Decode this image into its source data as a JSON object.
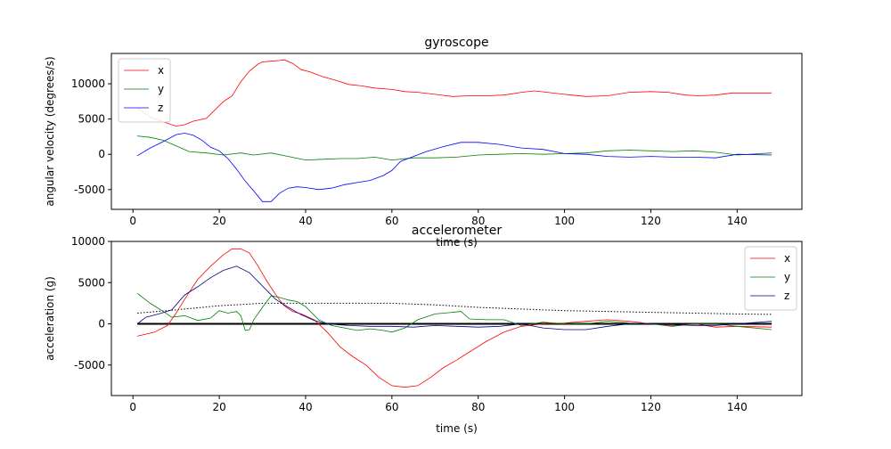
{
  "chart_data": [
    {
      "type": "line",
      "title": "gyroscope",
      "xlabel": "time (s)",
      "ylabel": "angular velocity (degrees/s)",
      "xlim": [
        -5,
        155
      ],
      "ylim": [
        -7800,
        14300
      ],
      "xticks": [
        0,
        20,
        40,
        60,
        80,
        100,
        120,
        140
      ],
      "yticks": [
        -5000,
        0,
        5000,
        10000
      ],
      "legend": "top-left",
      "grid": false,
      "series": [
        {
          "name": "x",
          "color": "#ff0000",
          "x": [
            1,
            4,
            7,
            10,
            12,
            14,
            17,
            19,
            21,
            23,
            25,
            27,
            29,
            30,
            32,
            34,
            35,
            37,
            39,
            41,
            44,
            47,
            50,
            53,
            56,
            60,
            63,
            66,
            70,
            74,
            78,
            82,
            86,
            90,
            93,
            96,
            100,
            105,
            110,
            115,
            120,
            124,
            128,
            131,
            135,
            139,
            143,
            148
          ],
          "y": [
            6600,
            5300,
            4600,
            4000,
            4200,
            4700,
            5100,
            6300,
            7500,
            8300,
            10300,
            11800,
            12800,
            13100,
            13200,
            13300,
            13400,
            12900,
            12000,
            11700,
            11000,
            10500,
            9900,
            9700,
            9400,
            9200,
            8900,
            8800,
            8500,
            8200,
            8300,
            8300,
            8400,
            8800,
            9000,
            8800,
            8500,
            8200,
            8300,
            8800,
            8900,
            8800,
            8400,
            8300,
            8400,
            8700,
            8700,
            8700
          ]
        },
        {
          "name": "y",
          "color": "#008000",
          "x": [
            1,
            4,
            7,
            10,
            13,
            17,
            21,
            25,
            28,
            32,
            36,
            40,
            44,
            48,
            52,
            56,
            60,
            65,
            70,
            75,
            80,
            85,
            90,
            95,
            100,
            105,
            110,
            115,
            120,
            125,
            130,
            135,
            140,
            148
          ],
          "y": [
            2600,
            2400,
            2000,
            1200,
            400,
            200,
            -100,
            200,
            -100,
            200,
            -300,
            -800,
            -700,
            -600,
            -600,
            -400,
            -800,
            -500,
            -500,
            -400,
            -100,
            0,
            100,
            0,
            100,
            200,
            500,
            600,
            500,
            400,
            500,
            300,
            -100,
            200
          ]
        },
        {
          "name": "z",
          "color": "#0000ff",
          "x": [
            1,
            4,
            7,
            10,
            12,
            14,
            16,
            18,
            20,
            22,
            24,
            26,
            28,
            30,
            32,
            34,
            36,
            38,
            40,
            43,
            46,
            49,
            52,
            55,
            58,
            60,
            62,
            65,
            68,
            72,
            76,
            80,
            85,
            90,
            95,
            100,
            105,
            110,
            115,
            120,
            125,
            130,
            135,
            140,
            148
          ],
          "y": [
            -200,
            900,
            1800,
            2800,
            3000,
            2700,
            2000,
            1000,
            500,
            -600,
            -2100,
            -3800,
            -5200,
            -6700,
            -6700,
            -5500,
            -4800,
            -4600,
            -4700,
            -5000,
            -4800,
            -4300,
            -4000,
            -3700,
            -3000,
            -2300,
            -1000,
            -300,
            400,
            1100,
            1700,
            1700,
            1400,
            900,
            700,
            100,
            0,
            -300,
            -400,
            -300,
            -400,
            -400,
            -500,
            0,
            -100
          ]
        }
      ]
    },
    {
      "type": "line",
      "title": "accelerometer",
      "xlabel": "time (s)",
      "ylabel": "acceleration (g)",
      "xlim": [
        -5,
        155
      ],
      "ylim": [
        -8700,
        10000
      ],
      "xticks": [
        0,
        20,
        40,
        60,
        80,
        100,
        120,
        140
      ],
      "yticks": [
        -5000,
        0,
        5000,
        10000
      ],
      "legend": "top-right",
      "grid": false,
      "series": [
        {
          "name": "x",
          "color": "#ff0000",
          "x": [
            1,
            5,
            8,
            10,
            12,
            15,
            18,
            21,
            23,
            25,
            27,
            29,
            31,
            33,
            35,
            37,
            39,
            42,
            45,
            48,
            51,
            54,
            57,
            60,
            63,
            66,
            69,
            72,
            75,
            78,
            82,
            86,
            90,
            95,
            100,
            105,
            110,
            115,
            120,
            125,
            130,
            135,
            140,
            148
          ],
          "y": [
            -1500,
            -1000,
            -200,
            1300,
            3000,
            5400,
            7000,
            8400,
            9100,
            9100,
            8600,
            7000,
            5200,
            3600,
            2200,
            1500,
            1200,
            500,
            -1000,
            -2800,
            -4000,
            -5000,
            -6500,
            -7500,
            -7700,
            -7500,
            -6500,
            -5300,
            -4400,
            -3400,
            -2100,
            -1000,
            -300,
            0,
            100,
            300,
            500,
            300,
            0,
            -200,
            0,
            -400,
            -300,
            -400
          ]
        },
        {
          "name": "y",
          "color": "#008000",
          "x": [
            1,
            4,
            7,
            9,
            12,
            15,
            18,
            20,
            22,
            24,
            25,
            26,
            27,
            28,
            30,
            32,
            34,
            36,
            38,
            40,
            43,
            46,
            49,
            52,
            55,
            58,
            60,
            63,
            66,
            70,
            74,
            76,
            78,
            82,
            86,
            90,
            95,
            100,
            105,
            110,
            115,
            120,
            125,
            130,
            135,
            140,
            148
          ],
          "y": [
            3700,
            2500,
            1500,
            800,
            1000,
            400,
            700,
            1600,
            1300,
            1500,
            1000,
            -800,
            -700,
            500,
            2000,
            3400,
            3200,
            2900,
            2700,
            2100,
            500,
            -200,
            -500,
            -800,
            -600,
            -800,
            -1000,
            -500,
            500,
            1200,
            1400,
            1500,
            600,
            500,
            500,
            -200,
            200,
            0,
            0,
            300,
            100,
            0,
            -300,
            0,
            0,
            -300,
            -700
          ]
        },
        {
          "name": "z",
          "color": "#000080",
          "x": [
            1,
            3,
            6,
            9,
            12,
            15,
            18,
            21,
            24,
            27,
            30,
            33,
            36,
            39,
            42,
            45,
            50,
            55,
            60,
            65,
            70,
            75,
            80,
            85,
            90,
            95,
            100,
            105,
            110,
            115,
            120,
            125,
            130,
            135,
            140,
            148
          ],
          "y": [
            0,
            800,
            1200,
            1700,
            3500,
            4500,
            5600,
            6500,
            7000,
            6200,
            4600,
            3000,
            2000,
            1100,
            400,
            0,
            -200,
            -300,
            -300,
            -400,
            -200,
            -300,
            -400,
            -300,
            0,
            -500,
            -700,
            -700,
            -300,
            0,
            0,
            -100,
            -200,
            -200,
            0,
            300
          ]
        }
      ],
      "extra_lines": [
        {
          "name": "",
          "color": "#000000",
          "style": "dotted",
          "x": [
            1,
            10,
            20,
            30,
            40,
            50,
            60,
            70,
            80,
            90,
            100,
            110,
            120,
            130,
            140,
            148
          ],
          "y": [
            1300,
            1700,
            2200,
            2500,
            2500,
            2500,
            2500,
            2300,
            2000,
            1800,
            1600,
            1500,
            1400,
            1300,
            1200,
            1150
          ]
        },
        {
          "name": "",
          "color": "#000000",
          "style": "solid-thick",
          "x": [
            1,
            148
          ],
          "y": [
            0,
            0
          ]
        }
      ]
    }
  ]
}
